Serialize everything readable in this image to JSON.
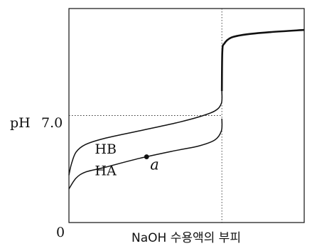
{
  "chart_data": {
    "type": "line",
    "xlabel": "NaOH 수용액의 부피",
    "origin_label": "0",
    "ylabel_prefix": "pH",
    "y_reference": {
      "value": 7.0,
      "label": "7.0"
    },
    "xlim": [
      0,
      1
    ],
    "ylim": [
      0,
      14
    ],
    "equivalence_x": 0.65,
    "series": [
      {
        "name": "HB",
        "x": [
          0,
          0.01,
          0.03,
          0.07,
          0.15,
          0.3,
          0.45,
          0.55,
          0.62,
          0.648,
          0.65
        ],
        "y": [
          3.1,
          3.8,
          4.6,
          5.1,
          5.5,
          6.0,
          6.5,
          6.9,
          7.3,
          7.8,
          8.6
        ]
      },
      {
        "name": "HA",
        "x": [
          0,
          0.03,
          0.07,
          0.15,
          0.3,
          0.45,
          0.55,
          0.62,
          0.648,
          0.65
        ],
        "y": [
          2.2,
          2.9,
          3.3,
          3.6,
          4.2,
          4.7,
          5.0,
          5.4,
          6.0,
          6.8
        ]
      },
      {
        "name": "",
        "style": "bold",
        "x": [
          0.65,
          0.652,
          0.66,
          0.69,
          0.75,
          0.85,
          1.0
        ],
        "y": [
          8.6,
          11.2,
          11.7,
          12.1,
          12.3,
          12.45,
          12.6
        ]
      }
    ],
    "points": [
      {
        "label": "a",
        "x": 0.33,
        "y": 4.3
      }
    ],
    "grid": false,
    "reference_lines": [
      "y = 7.0 (dotted)",
      "x = equivalence point (dotted)"
    ]
  }
}
